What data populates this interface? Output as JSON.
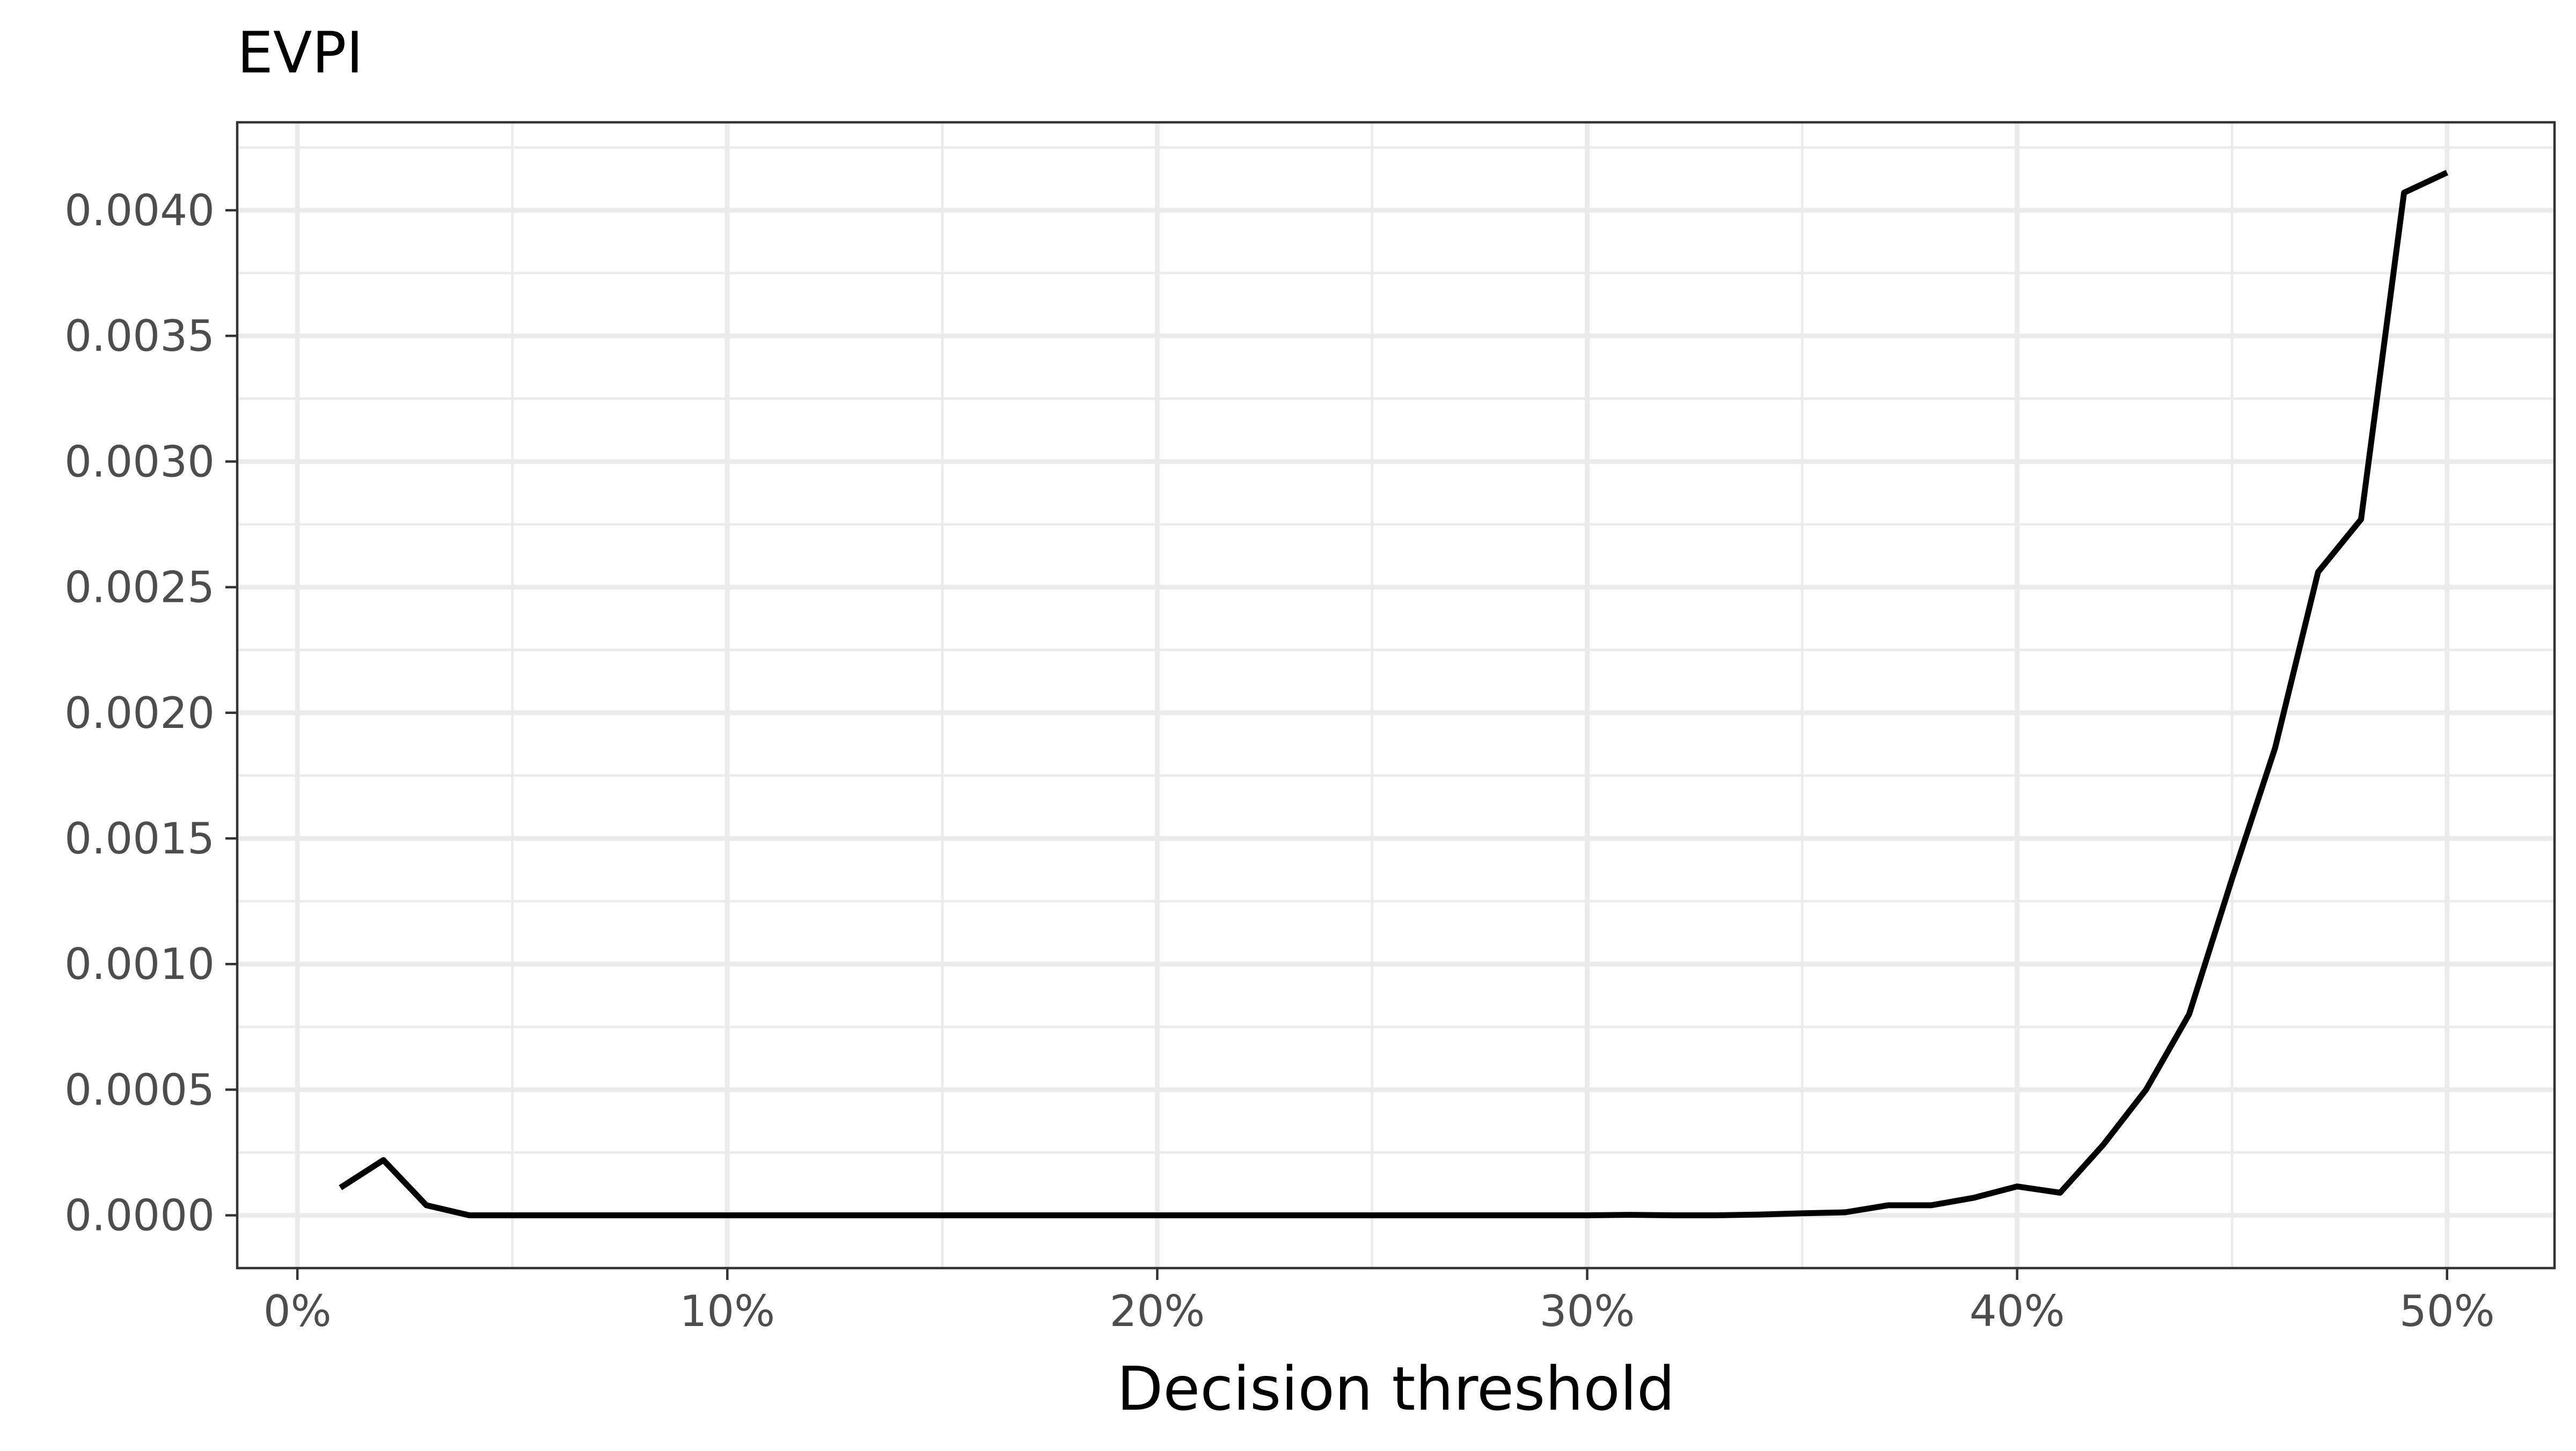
{
  "chart_data": {
    "type": "line",
    "title": "EVPI",
    "xlabel": "Decision threshold",
    "ylabel": "",
    "xlim": [
      -0.014,
      0.525
    ],
    "ylim": [
      -0.00021,
      0.00435
    ],
    "x_ticks": [
      0,
      0.1,
      0.2,
      0.3,
      0.4,
      0.5
    ],
    "x_tick_labels": [
      "0%",
      "10%",
      "20%",
      "30%",
      "40%",
      "50%"
    ],
    "y_ticks": [
      0,
      0.0005,
      0.001,
      0.0015,
      0.002,
      0.0025,
      0.003,
      0.0035,
      0.004
    ],
    "y_tick_labels": [
      "0.0000",
      "0.0005",
      "0.0010",
      "0.0015",
      "0.0020",
      "0.0025",
      "0.0030",
      "0.0035",
      "0.0040"
    ],
    "grid": true,
    "legend": "none",
    "line_color": "#000000",
    "series": [
      {
        "x": [
          0.01,
          0.02,
          0.03,
          0.04,
          0.05,
          0.06,
          0.07,
          0.08,
          0.09,
          0.1,
          0.11,
          0.12,
          0.13,
          0.14,
          0.15,
          0.16,
          0.17,
          0.18,
          0.19,
          0.2,
          0.21,
          0.22,
          0.23,
          0.24,
          0.25,
          0.26,
          0.27,
          0.28,
          0.29,
          0.3,
          0.31,
          0.32,
          0.33,
          0.34,
          0.35,
          0.36,
          0.37,
          0.38,
          0.39,
          0.4,
          0.41,
          0.42,
          0.43,
          0.44,
          0.45,
          0.46,
          0.47,
          0.48,
          0.49,
          0.5
        ],
        "values": [
          0.00011,
          0.00022,
          4e-05,
          0.0,
          0.0,
          0.0,
          0.0,
          0.0,
          0.0,
          0.0,
          0.0,
          0.0,
          0.0,
          0.0,
          0.0,
          0.0,
          0.0,
          0.0,
          0.0,
          0.0,
          0.0,
          0.0,
          0.0,
          0.0,
          0.0,
          0.0,
          0.0,
          0.0,
          0.0,
          0.0,
          2e-06,
          0.0,
          0.0,
          3e-06,
          8e-06,
          1.2e-05,
          4e-05,
          4e-05,
          7e-05,
          0.000115,
          9e-05,
          0.00028,
          0.0005,
          0.0008,
          0.00134,
          0.00186,
          0.00256,
          0.00277,
          0.00407,
          0.00415
        ]
      }
    ]
  }
}
